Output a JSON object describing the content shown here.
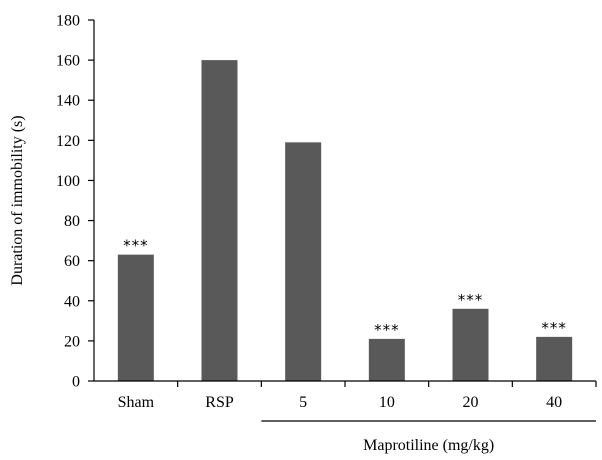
{
  "chart_data": {
    "type": "bar",
    "categories": [
      "Sham",
      "RSP",
      "5",
      "10",
      "20",
      "40"
    ],
    "values": [
      63,
      160,
      119,
      21,
      36,
      22
    ],
    "annotations": [
      "***",
      "",
      "",
      "***",
      "***",
      "***"
    ],
    "ylabel": "Duration of immobility (s)",
    "group_label": "Maprotiline (mg/kg)",
    "group_categories": [
      "5",
      "10",
      "20",
      "40"
    ],
    "ylim": [
      0,
      180
    ],
    "yticks": [
      0,
      20,
      40,
      60,
      80,
      100,
      120,
      140,
      160,
      180
    ],
    "bar_color": "#595959",
    "grid": false
  }
}
